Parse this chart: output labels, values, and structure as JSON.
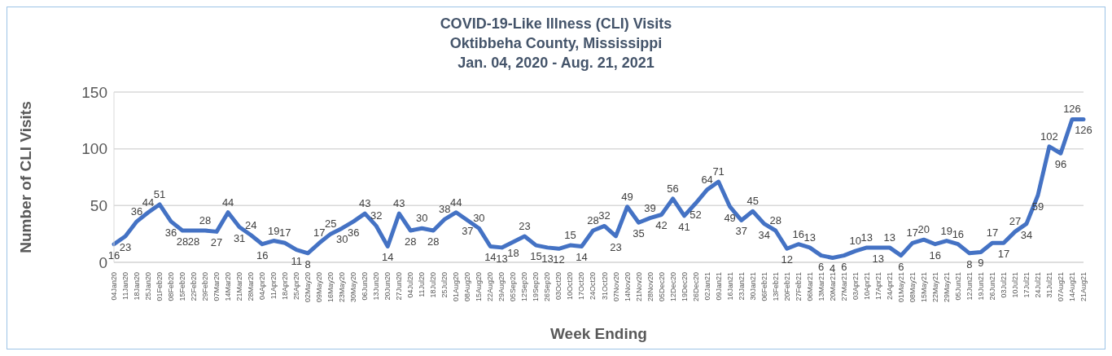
{
  "chart_data": {
    "type": "line",
    "title": "COVID-19-Like Illness (CLI) Visits",
    "subtitle": "Oktibbeha County, Mississippi\nJan. 04, 2020 - Aug. 21, 2021",
    "xlabel": "Week Ending",
    "ylabel": "Number of CLI Visits",
    "categories": [
      "04Jan20",
      "11Jan20",
      "18Jan20",
      "25Jan20",
      "01Feb20",
      "08Feb20",
      "15Feb20",
      "22Feb20",
      "29Feb20",
      "07Mar20",
      "14Mar20",
      "21Mar20",
      "28Mar20",
      "04Apr20",
      "11Apr20",
      "18Apr20",
      "25Apr20",
      "02May20",
      "09May20",
      "16May20",
      "23May20",
      "30May20",
      "06Jun20",
      "13Jun20",
      "20Jun20",
      "27Jun20",
      "04Jul20",
      "11Jul20",
      "18Jul20",
      "25Jul20",
      "01Aug20",
      "08Aug20",
      "15Aug20",
      "22Aug20",
      "29Aug20",
      "05Sep20",
      "12Sep20",
      "19Sep20",
      "26Sep20",
      "03Oct20",
      "10Oct20",
      "17Oct20",
      "24Oct20",
      "31Oct20",
      "07Nov20",
      "14Nov20",
      "21Nov20",
      "28Nov20",
      "05Dec20",
      "12Dec20",
      "19Dec20",
      "26Dec20",
      "02Jan21",
      "09Jan21",
      "16Jan21",
      "23Jan21",
      "30Jan21",
      "06Feb21",
      "13Feb21",
      "20Feb21",
      "27Feb21",
      "06Mar21",
      "13Mar21",
      "20Mar21",
      "27Mar21",
      "03Apr21",
      "10Apr21",
      "17Apr21",
      "24Apr21",
      "01May21",
      "08May21",
      "15May21",
      "22May21",
      "29May21",
      "05Jun21",
      "12Jun21",
      "19Jun21",
      "26Jun21",
      "03Jul21",
      "10Jul21",
      "17Jul21",
      "24Jul21",
      "31Jul21",
      "07Aug21",
      "14Aug21",
      "21Aug21"
    ],
    "series": [
      {
        "color": "#4472c4",
        "values": [
          16,
          23,
          36,
          44,
          51,
          36,
          28,
          28,
          28,
          27,
          44,
          31,
          24,
          16,
          19,
          17,
          11,
          8,
          17,
          25,
          30,
          36,
          43,
          32,
          14,
          43,
          28,
          30,
          28,
          38,
          44,
          37,
          30,
          14,
          13,
          18,
          23,
          15,
          13,
          12,
          15,
          14,
          28,
          32,
          23,
          49,
          35,
          39,
          42,
          56,
          41,
          52,
          64,
          71,
          49,
          37,
          45,
          34,
          28,
          12,
          16,
          13,
          6,
          4,
          6,
          10,
          13,
          13,
          13,
          6,
          17,
          20,
          16,
          19,
          16,
          8,
          9,
          17,
          17,
          27,
          34,
          59,
          102,
          96,
          126,
          126
        ]
      }
    ],
    "ylim": [
      0,
      150
    ],
    "yticks": [
      0,
      50,
      100,
      150
    ],
    "grid": "y",
    "legend": false,
    "marker": "none",
    "line_style": "solid",
    "data_labels": true
  }
}
